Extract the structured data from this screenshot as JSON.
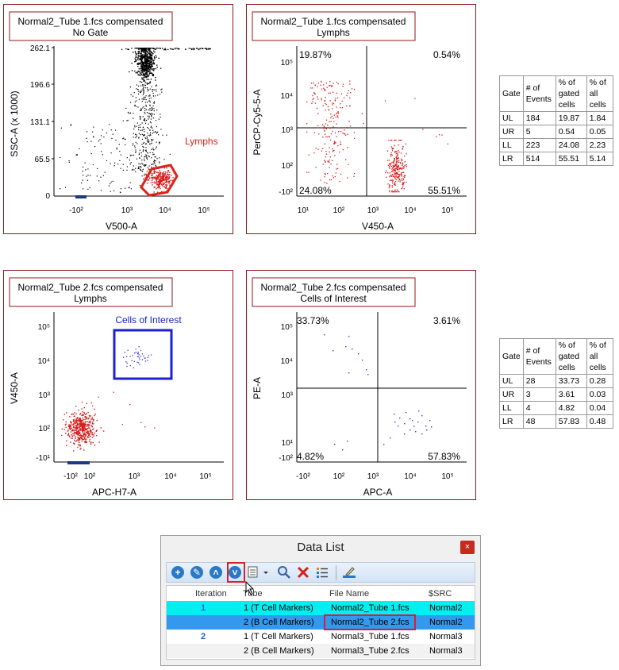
{
  "plots": [
    {
      "title": "Normal2_Tube 1.fcs compensated",
      "subtitle": "No Gate",
      "xlabel": "V500-A",
      "ylabel": "SSC-A (x 1000)",
      "xticks": [
        "-10²",
        "10³",
        "10⁴",
        "10⁵"
      ],
      "yticks": [
        "262.1",
        "196.6",
        "131.1",
        "65.5",
        "0"
      ],
      "gate_label": "Lymphs"
    },
    {
      "title": "Normal2_Tube 1.fcs compensated",
      "subtitle": "Lymphs",
      "xlabel": "V450-A",
      "ylabel": "PerCP-Cy5-5-A",
      "xticks": [
        "10¹",
        "10²",
        "10³",
        "10⁴",
        "10⁵"
      ],
      "yticks": [
        "10⁵",
        "10⁴",
        "10³",
        "10²",
        "-10²"
      ],
      "quadrants": {
        "ul": "19.87%",
        "ur": "0.54%",
        "ll": "24.08%",
        "lr": "55.51%"
      }
    },
    {
      "title": "Normal2_Tube 2.fcs compensated",
      "subtitle": "Lymphs",
      "xlabel": "APC-H7-A",
      "ylabel": "V450-A",
      "xticks": [
        "-10²",
        "10²",
        "10³",
        "10⁴",
        "10⁵"
      ],
      "yticks": [
        "10⁵",
        "10⁴",
        "10³",
        "10²",
        "-10¹"
      ],
      "gate_label": "Cells of Interest"
    },
    {
      "title": "Normal2_Tube 2.fcs compensated",
      "subtitle": "Cells of Interest",
      "xlabel": "APC-A",
      "ylabel": "PE-A",
      "xticks": [
        "-10²",
        "10²",
        "10³",
        "10⁴",
        "10⁵"
      ],
      "yticks": [
        "10⁵",
        "10⁴",
        "10³",
        "10¹",
        "-10²"
      ],
      "quadrants": {
        "ul": "33.73%",
        "ur": "3.61%",
        "ll": "4.82%",
        "lr": "57.83%"
      }
    }
  ],
  "stats_tables": [
    {
      "headers": [
        "Gate",
        "# of Events",
        "% of gated cells",
        "% of all cells"
      ],
      "rows": [
        [
          "UL",
          "184",
          "19.87",
          "1.84"
        ],
        [
          "UR",
          "5",
          "0.54",
          "0.05"
        ],
        [
          "LL",
          "223",
          "24.08",
          "2.23"
        ],
        [
          "LR",
          "514",
          "55.51",
          "5.14"
        ]
      ]
    },
    {
      "headers": [
        "Gate",
        "# of Events",
        "% of gated cells",
        "% of all cells"
      ],
      "rows": [
        [
          "UL",
          "28",
          "33.73",
          "0.28"
        ],
        [
          "UR",
          "3",
          "3.61",
          "0.03"
        ],
        [
          "LL",
          "4",
          "4.82",
          "0.04"
        ],
        [
          "LR",
          "48",
          "57.83",
          "0.48"
        ]
      ]
    }
  ],
  "data_list": {
    "title": "Data List",
    "close_label": "×",
    "toolbar_icons": [
      "add-icon",
      "wrench-icon",
      "move-up-icon",
      "move-down-icon",
      "copy-icon",
      "dropdown-arrow-icon",
      "search-icon",
      "delete-icon",
      "list-icon",
      "edit-icon"
    ],
    "columns": [
      "Iteration",
      "Tube",
      "File Name",
      "$SRC"
    ],
    "rows": [
      {
        "iteration": "1",
        "tube": "1 (T Cell Markers)",
        "file": "Normal2_Tube 1.fcs",
        "src": "Normal2"
      },
      {
        "iteration": "",
        "tube": "2 (B Cell Markers)",
        "file": "Normal2_Tube 2.fcs",
        "src": "Normal2"
      },
      {
        "iteration": "2",
        "tube": "1 (T Cell Markers)",
        "file": "Normal3_Tube 1.fcs",
        "src": "Normal3"
      },
      {
        "iteration": "",
        "tube": "2 (B Cell Markers)",
        "file": "Normal3_Tube 2.fcs",
        "src": "Normal3"
      }
    ]
  },
  "colors": {
    "frame": "#8b1a1a",
    "gate_red": "#e0201a",
    "gate_blue": "#1a22d0",
    "dots_red": "#d41a1a",
    "dots_blue": "#3a3ad0",
    "selected_cyan": "#00f0f0",
    "selected_blue": "#3399ee"
  }
}
